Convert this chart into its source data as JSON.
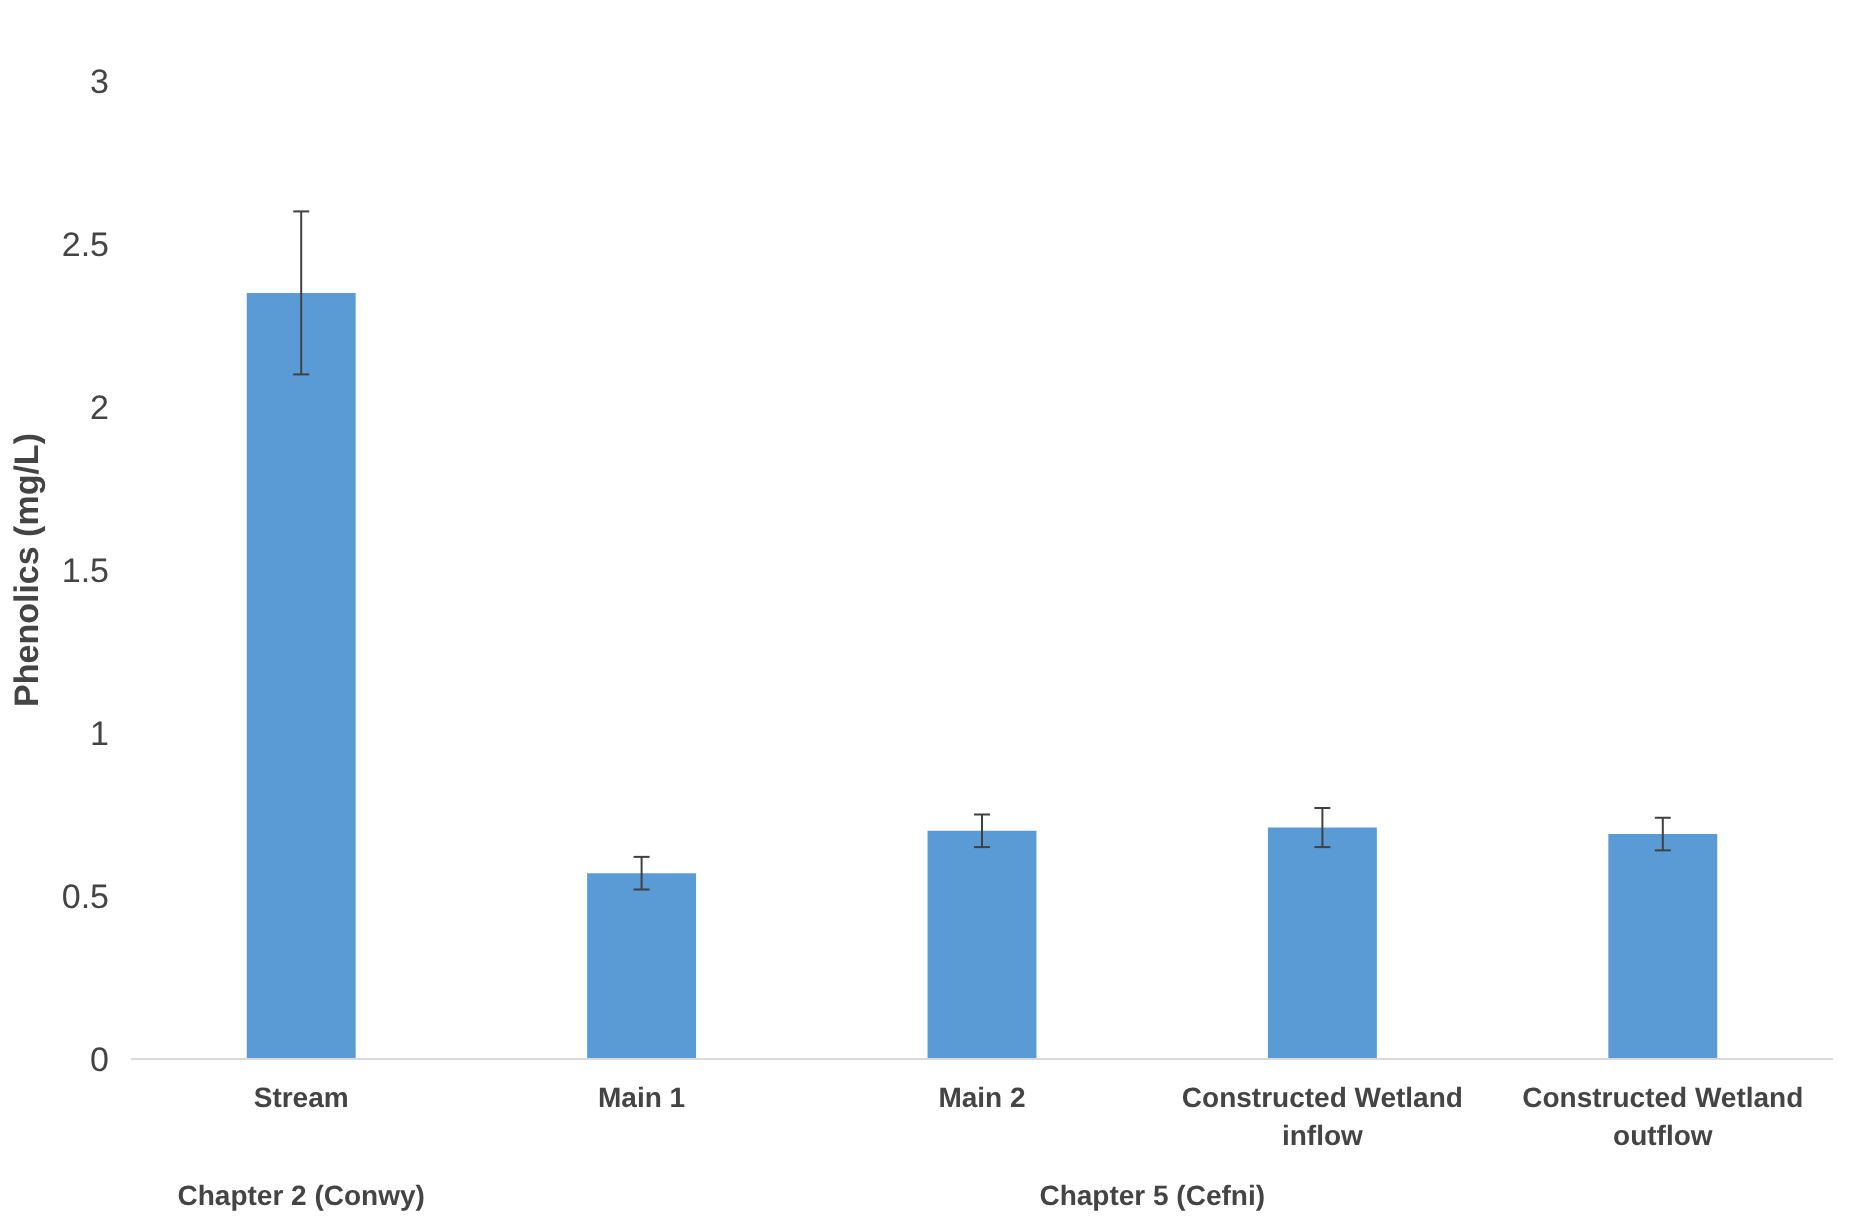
{
  "chart_data": {
    "type": "bar",
    "ylabel": "Phenolics (mg/L)",
    "categories": [
      "Stream",
      "Main 1",
      "Main 2",
      "Constructed Wetland inflow",
      "Constructed Wetland outflow"
    ],
    "values": [
      2.35,
      0.57,
      0.7,
      0.71,
      0.69
    ],
    "errors": [
      0.25,
      0.05,
      0.05,
      0.06,
      0.05
    ],
    "color": "#5b9bd5",
    "ylim": [
      0,
      3
    ],
    "yticks": [
      0,
      0.5,
      1,
      1.5,
      2,
      2.5,
      3
    ],
    "grid": false,
    "annotations": [
      "Chapter 2 (Conwy)",
      "Chapter 5 (Cefni)"
    ]
  }
}
